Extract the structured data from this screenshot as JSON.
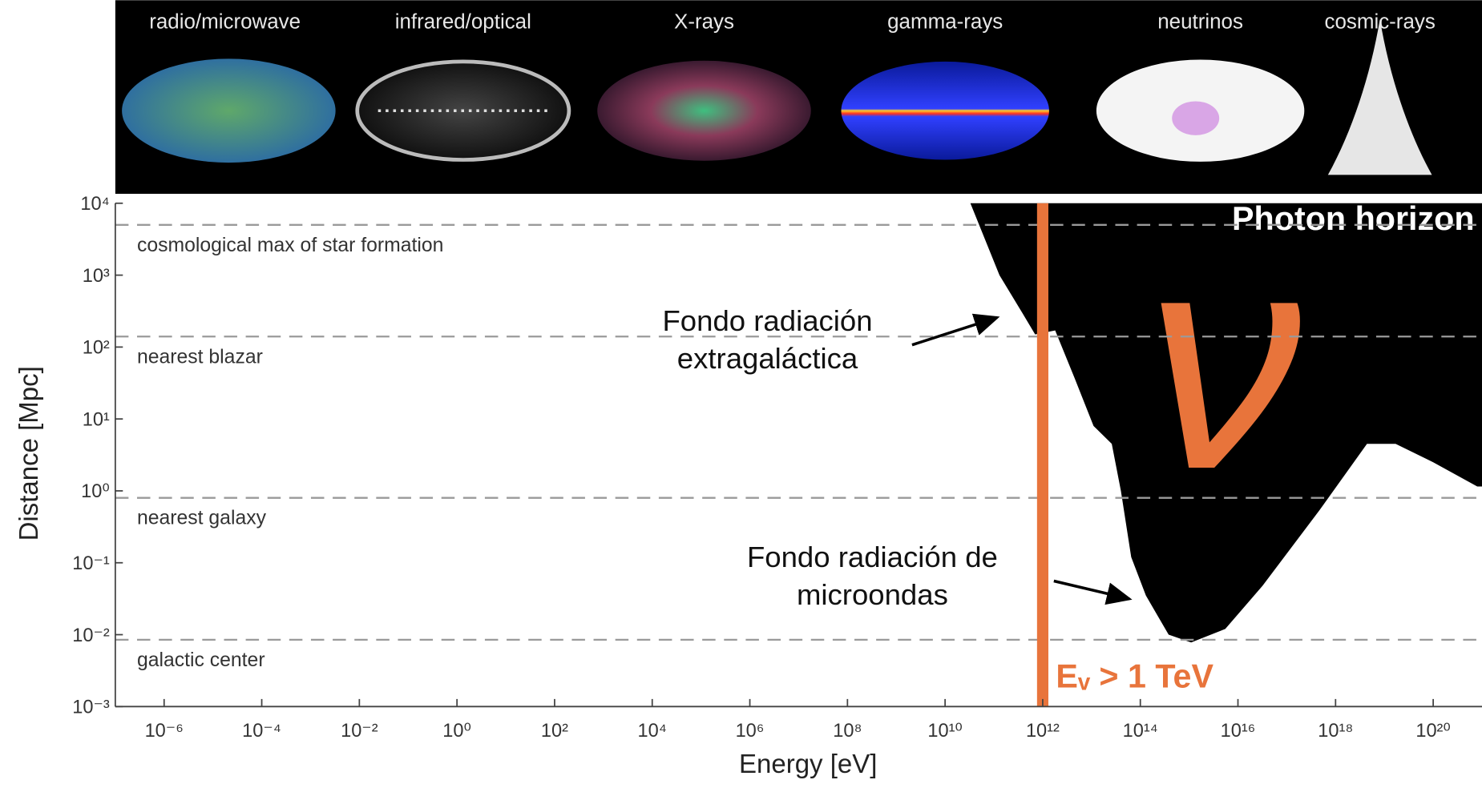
{
  "panel": {
    "labels": [
      "radio/microwave",
      "infrared/optical",
      "X-rays",
      "gamma-rays",
      "neutrinos",
      "cosmic-rays"
    ]
  },
  "chart_data": {
    "type": "area",
    "xlabel": "Energy [eV]",
    "ylabel": "Distance [Mpc]",
    "xscale": "log",
    "yscale": "log",
    "xlim": [
      1e-07,
      1e+21
    ],
    "ylim": [
      0.001,
      10000.0
    ],
    "xticks": [
      {
        "value": 1e-06,
        "label": "10⁻⁶"
      },
      {
        "value": 0.0001,
        "label": "10⁻⁴"
      },
      {
        "value": 0.01,
        "label": "10⁻²"
      },
      {
        "value": 1,
        "label": "10⁰"
      },
      {
        "value": 100.0,
        "label": "10²"
      },
      {
        "value": 10000.0,
        "label": "10⁴"
      },
      {
        "value": 1000000.0,
        "label": "10⁶"
      },
      {
        "value": 100000000.0,
        "label": "10⁸"
      },
      {
        "value": 10000000000.0,
        "label": "10¹⁰"
      },
      {
        "value": 1000000000000.0,
        "label": "10¹²"
      },
      {
        "value": 100000000000000.0,
        "label": "10¹⁴"
      },
      {
        "value": 1e+16,
        "label": "10¹⁶"
      },
      {
        "value": 1e+18,
        "label": "10¹⁸"
      },
      {
        "value": 1e+20,
        "label": "10²⁰"
      }
    ],
    "yticks": [
      {
        "value": 10000.0,
        "label": "10⁴"
      },
      {
        "value": 1000.0,
        "label": "10³"
      },
      {
        "value": 100.0,
        "label": "10²"
      },
      {
        "value": 10,
        "label": "10¹"
      },
      {
        "value": 1,
        "label": "10⁰"
      },
      {
        "value": 0.1,
        "label": "10⁻¹"
      },
      {
        "value": 0.01,
        "label": "10⁻²"
      },
      {
        "value": 0.001,
        "label": "10⁻³"
      }
    ],
    "series": [
      {
        "name": "Photon horizon",
        "color": "#000000",
        "x": [
          33000000000.0,
          130000000000.0,
          380000000000.0,
          700000000000.0,
          1800000000000.0,
          4500000000000.0,
          11000000000000.0,
          26000000000000.0,
          40000000000000.0,
          65000000000000.0,
          130000000000000.0,
          380000000000000.0,
          1100000000000000.0,
          5500000000000000.0,
          3.2e+16,
          4.7e+17,
          4.4e+18,
          1.7e+19,
          1e+20,
          8e+20
        ],
        "values": [
          10000,
          1000,
          300,
          150,
          170,
          37,
          8,
          4.5,
          1,
          0.12,
          0.035,
          0.01,
          0.0078,
          0.012,
          0.048,
          0.54,
          4.5,
          4.5,
          2.5,
          1.15
        ]
      }
    ],
    "reference_lines": [
      {
        "label": "cosmological max of star formation",
        "value": 5000
      },
      {
        "label": "nearest blazar",
        "value": 140
      },
      {
        "label": "nearest galaxy",
        "value": 0.8
      },
      {
        "label": "galactic center",
        "value": 0.0085
      }
    ],
    "vline": {
      "value": 1000000000000.0,
      "label": "Eᵥ > 1 TeV",
      "color": "#e8743b"
    },
    "symbol": {
      "text": "ν",
      "color": "#e8743b"
    },
    "annotations": [
      {
        "lines": [
          "Fondo radiación",
          "extragaláctica"
        ]
      },
      {
        "lines": [
          "Fondo radiación de",
          "microondas"
        ]
      }
    ]
  }
}
